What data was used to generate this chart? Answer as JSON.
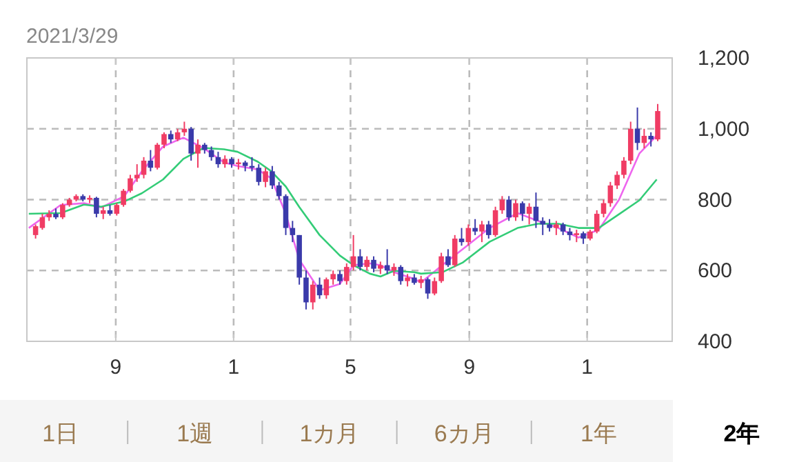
{
  "chart_data": {
    "type": "candlestick",
    "title": "2021/3/29",
    "x": [
      "2019-06-10",
      "2019-06-17",
      "2019-06-24",
      "2019-07-01",
      "2019-07-08",
      "2019-07-15",
      "2019-07-22",
      "2019-07-29",
      "2019-08-05",
      "2019-08-12",
      "2019-08-19",
      "2019-08-26",
      "2019-09-02",
      "2019-09-09",
      "2019-09-16",
      "2019-09-23",
      "2019-09-30",
      "2019-10-07",
      "2019-10-14",
      "2019-10-21",
      "2019-10-28",
      "2019-11-04",
      "2019-11-11",
      "2019-11-18",
      "2019-11-25",
      "2019-12-02",
      "2019-12-09",
      "2019-12-16",
      "2019-12-23",
      "2019-12-30",
      "2020-01-06",
      "2020-01-13",
      "2020-01-20",
      "2020-01-27",
      "2020-02-03",
      "2020-02-10",
      "2020-02-17",
      "2020-02-24",
      "2020-03-02",
      "2020-03-09",
      "2020-03-16",
      "2020-03-23",
      "2020-03-30",
      "2020-04-06",
      "2020-04-13",
      "2020-04-20",
      "2020-04-27",
      "2020-05-04",
      "2020-05-11",
      "2020-05-18",
      "2020-05-25",
      "2020-06-01",
      "2020-06-08",
      "2020-06-15",
      "2020-06-22",
      "2020-06-29",
      "2020-07-06",
      "2020-07-13",
      "2020-07-20",
      "2020-07-27",
      "2020-08-03",
      "2020-08-10",
      "2020-08-17",
      "2020-08-24",
      "2020-08-31",
      "2020-09-07",
      "2020-09-14",
      "2020-09-21",
      "2020-09-28",
      "2020-10-05",
      "2020-10-12",
      "2020-10-19",
      "2020-10-26",
      "2020-11-02",
      "2020-11-09",
      "2020-11-16",
      "2020-11-23",
      "2020-11-30",
      "2020-12-07",
      "2020-12-14",
      "2020-12-21",
      "2020-12-28",
      "2021-01-04",
      "2021-01-11",
      "2021-01-18",
      "2021-01-25",
      "2021-02-01",
      "2021-02-08",
      "2021-02-15",
      "2021-02-22",
      "2021-03-01",
      "2021-03-08",
      "2021-03-15"
    ],
    "ohlc": [
      [
        700,
        730,
        690,
        725
      ],
      [
        720,
        760,
        715,
        750
      ],
      [
        750,
        770,
        740,
        760
      ],
      [
        760,
        775,
        745,
        750
      ],
      [
        750,
        790,
        745,
        785
      ],
      [
        785,
        805,
        780,
        800
      ],
      [
        800,
        815,
        795,
        810
      ],
      [
        810,
        815,
        795,
        800
      ],
      [
        800,
        812,
        790,
        805
      ],
      [
        805,
        808,
        750,
        760
      ],
      [
        760,
        780,
        745,
        770
      ],
      [
        770,
        785,
        755,
        760
      ],
      [
        760,
        790,
        755,
        785
      ],
      [
        785,
        830,
        780,
        825
      ],
      [
        825,
        870,
        820,
        860
      ],
      [
        860,
        900,
        850,
        870
      ],
      [
        870,
        920,
        860,
        910
      ],
      [
        910,
        940,
        880,
        890
      ],
      [
        890,
        960,
        885,
        955
      ],
      [
        955,
        990,
        945,
        985
      ],
      [
        985,
        995,
        960,
        970
      ],
      [
        970,
        1000,
        965,
        990
      ],
      [
        990,
        1020,
        980,
        1000
      ],
      [
        1000,
        1005,
        910,
        930
      ],
      [
        930,
        970,
        890,
        955
      ],
      [
        955,
        960,
        930,
        940
      ],
      [
        940,
        950,
        910,
        920
      ],
      [
        920,
        935,
        890,
        900
      ],
      [
        900,
        925,
        890,
        915
      ],
      [
        915,
        920,
        890,
        900
      ],
      [
        900,
        915,
        885,
        905
      ],
      [
        905,
        910,
        880,
        895
      ],
      [
        895,
        920,
        880,
        890
      ],
      [
        890,
        900,
        840,
        850
      ],
      [
        850,
        890,
        835,
        880
      ],
      [
        880,
        895,
        830,
        840
      ],
      [
        840,
        850,
        800,
        810
      ],
      [
        810,
        815,
        700,
        720
      ],
      [
        720,
        740,
        680,
        700
      ],
      [
        700,
        700,
        560,
        580
      ],
      [
        580,
        600,
        490,
        510
      ],
      [
        510,
        570,
        490,
        560
      ],
      [
        560,
        580,
        520,
        530
      ],
      [
        530,
        580,
        520,
        575
      ],
      [
        575,
        600,
        560,
        590
      ],
      [
        590,
        600,
        560,
        570
      ],
      [
        570,
        620,
        560,
        610
      ],
      [
        610,
        700,
        600,
        640
      ],
      [
        640,
        660,
        600,
        610
      ],
      [
        610,
        640,
        600,
        630
      ],
      [
        630,
        640,
        595,
        605
      ],
      [
        605,
        625,
        590,
        615
      ],
      [
        615,
        660,
        590,
        600
      ],
      [
        600,
        620,
        585,
        610
      ],
      [
        610,
        615,
        560,
        570
      ],
      [
        570,
        590,
        555,
        580
      ],
      [
        580,
        590,
        560,
        565
      ],
      [
        565,
        585,
        550,
        575
      ],
      [
        575,
        580,
        520,
        535
      ],
      [
        535,
        580,
        530,
        570
      ],
      [
        570,
        650,
        565,
        640
      ],
      [
        640,
        660,
        610,
        615
      ],
      [
        615,
        700,
        610,
        690
      ],
      [
        690,
        720,
        670,
        680
      ],
      [
        680,
        730,
        670,
        720
      ],
      [
        720,
        745,
        700,
        710
      ],
      [
        710,
        740,
        680,
        730
      ],
      [
        730,
        740,
        690,
        700
      ],
      [
        700,
        780,
        695,
        770
      ],
      [
        770,
        810,
        760,
        800
      ],
      [
        800,
        810,
        740,
        750
      ],
      [
        750,
        800,
        740,
        790
      ],
      [
        790,
        795,
        740,
        760
      ],
      [
        760,
        790,
        730,
        780
      ],
      [
        780,
        820,
        720,
        740
      ],
      [
        740,
        750,
        700,
        730
      ],
      [
        730,
        745,
        710,
        720
      ],
      [
        720,
        740,
        700,
        730
      ],
      [
        730,
        735,
        700,
        710
      ],
      [
        710,
        720,
        685,
        700
      ],
      [
        700,
        715,
        680,
        705
      ],
      [
        705,
        710,
        675,
        690
      ],
      [
        690,
        715,
        685,
        710
      ],
      [
        710,
        770,
        705,
        760
      ],
      [
        760,
        800,
        750,
        790
      ],
      [
        790,
        850,
        780,
        840
      ],
      [
        840,
        880,
        830,
        870
      ],
      [
        870,
        920,
        860,
        910
      ],
      [
        910,
        1020,
        900,
        1000
      ],
      [
        1000,
        1060,
        940,
        960
      ],
      [
        960,
        1000,
        945,
        980
      ],
      [
        980,
        990,
        950,
        970
      ],
      [
        970,
        1070,
        965,
        1050
      ]
    ],
    "series": [
      {
        "type": "line",
        "color": "#ee66ee",
        "x": [
          "2019-06-03",
          "2019-07-06",
          "2019-07-30",
          "2019-08-17",
          "2019-09-10",
          "2019-09-28",
          "2019-10-20",
          "2019-11-10",
          "2019-12-01",
          "2019-12-22",
          "2020-01-05",
          "2020-01-26",
          "2020-02-09",
          "2020-02-24",
          "2020-03-09",
          "2020-03-30",
          "2020-04-20",
          "2020-05-04",
          "2020-05-21",
          "2020-06-01",
          "2020-06-15",
          "2020-07-06",
          "2020-07-13",
          "2020-08-04",
          "2020-08-25",
          "2020-09-22",
          "2020-10-21",
          "2020-11-11",
          "2020-12-02",
          "2020-12-23",
          "2021-01-13",
          "2021-02-03",
          "2021-02-24",
          "2021-03-14"
        ],
        "values": [
          720,
          785,
          790,
          778,
          810,
          880,
          950,
          975,
          945,
          905,
          895,
          885,
          860,
          760,
          630,
          544,
          562,
          615,
          620,
          615,
          595,
          576,
          566,
          615,
          660,
          720,
          762,
          740,
          720,
          693,
          715,
          800,
          930,
          981
        ]
      },
      {
        "type": "line",
        "color": "#33cc77",
        "x": [
          "2019-06-03",
          "2019-07-06",
          "2019-07-30",
          "2019-08-17",
          "2019-09-10",
          "2019-09-28",
          "2019-10-20",
          "2019-11-10",
          "2019-12-01",
          "2019-12-22",
          "2020-01-05",
          "2020-01-26",
          "2020-02-09",
          "2020-02-24",
          "2020-03-09",
          "2020-03-30",
          "2020-04-20",
          "2020-05-04",
          "2020-05-21",
          "2020-06-01",
          "2020-06-15",
          "2020-07-06",
          "2020-07-13",
          "2020-08-04",
          "2020-08-25",
          "2020-09-22",
          "2020-10-21",
          "2020-11-11",
          "2020-12-02",
          "2020-12-23",
          "2021-01-13",
          "2021-02-03",
          "2021-02-24",
          "2021-03-14"
        ],
        "values": [
          760,
          762,
          786,
          780,
          795,
          818,
          857,
          915,
          946,
          942,
          935,
          907,
          880,
          837,
          779,
          700,
          642,
          615,
          591,
          583,
          599,
          595,
          591,
          595,
          622,
          681,
          720,
          732,
          732,
          720,
          720,
          759,
          798,
          857
        ]
      }
    ],
    "xlim": [
      "2019-06-01",
      "2021-03-30"
    ],
    "xticks": [
      {
        "value": "2019-09-01",
        "label": "9"
      },
      {
        "value": "2020-01-01",
        "label": "1"
      },
      {
        "value": "2020-05-01",
        "label": "5"
      },
      {
        "value": "2020-09-01",
        "label": "9"
      },
      {
        "value": "2021-01-01",
        "label": "1"
      }
    ],
    "ylim": [
      400,
      1200
    ],
    "yticks": [
      {
        "value": 400,
        "label": "400"
      },
      {
        "value": 600,
        "label": "600"
      },
      {
        "value": 800,
        "label": "800"
      },
      {
        "value": 1000,
        "label": "1,000"
      },
      {
        "value": 1200,
        "label": "1,200"
      }
    ],
    "grid": true,
    "line_style": "solid",
    "annotations": [
      "1日",
      "1週",
      "1カ月",
      "6カ月",
      "1年",
      "2年"
    ]
  }
}
